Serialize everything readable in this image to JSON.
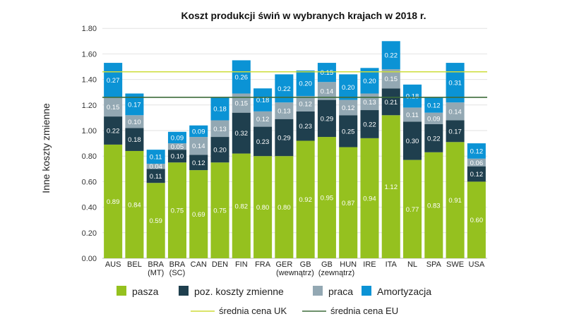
{
  "chart_data": {
    "type": "stacked-bar",
    "title": "Koszt produkcji świń w wybranych krajach w 2018 r.",
    "ylabel": "Inne koszty zmienne",
    "xlabel": "",
    "ylim": [
      0,
      1.8
    ],
    "yticks": [
      "0.00",
      "0.20",
      "0.40",
      "0.60",
      "0.80",
      "1.00",
      "1.20",
      "1.40",
      "1.60",
      "1.80"
    ],
    "grid": true,
    "legend_position": "bottom",
    "categories": [
      [
        "AUS"
      ],
      [
        "BEL"
      ],
      [
        "BRA",
        "(MT)"
      ],
      [
        "BRA",
        "(SC)"
      ],
      [
        "CAN"
      ],
      [
        "DEN"
      ],
      [
        "FIN"
      ],
      [
        "FRA"
      ],
      [
        "GER"
      ],
      [
        "GB",
        "(wewnątrz)"
      ],
      [
        "GB",
        "(zewnątrz)"
      ],
      [
        "HUN"
      ],
      [
        "IRE"
      ],
      [
        "ITA"
      ],
      [
        "NL"
      ],
      [
        "SPA"
      ],
      [
        "SWE"
      ],
      [
        "USA"
      ]
    ],
    "series": [
      {
        "name": "pasza",
        "color": "#95c11f",
        "values": [
          0.89,
          0.84,
          0.59,
          0.75,
          0.69,
          0.75,
          0.82,
          0.8,
          0.8,
          0.92,
          0.95,
          0.87,
          0.94,
          1.12,
          0.77,
          0.83,
          0.91,
          0.6
        ]
      },
      {
        "name": "poz. koszty zmienne",
        "color": "#1f3f4e",
        "values": [
          0.22,
          0.18,
          0.11,
          0.1,
          0.12,
          0.2,
          0.32,
          0.23,
          0.29,
          0.23,
          0.29,
          0.25,
          0.22,
          0.21,
          0.3,
          0.22,
          0.17,
          0.12
        ]
      },
      {
        "name": "praca",
        "color": "#93a8b3",
        "values": [
          0.15,
          0.1,
          0.04,
          0.05,
          0.14,
          0.13,
          0.15,
          0.12,
          0.13,
          0.12,
          0.14,
          0.12,
          0.13,
          0.15,
          0.11,
          0.09,
          0.14,
          0.06
        ]
      },
      {
        "name": "Amortyzacja",
        "color": "#0b93d5",
        "values": [
          0.27,
          0.17,
          0.11,
          0.09,
          0.09,
          0.18,
          0.26,
          0.18,
          0.22,
          0.2,
          0.15,
          0.2,
          0.2,
          0.22,
          0.18,
          0.12,
          0.31,
          0.12
        ]
      }
    ],
    "reference_lines": [
      {
        "name": "średnia cena UK",
        "color": "#cddc39",
        "value": 1.46
      },
      {
        "name": "średnia cena EU",
        "color": "#3d6b3a",
        "value": 1.26
      }
    ]
  }
}
